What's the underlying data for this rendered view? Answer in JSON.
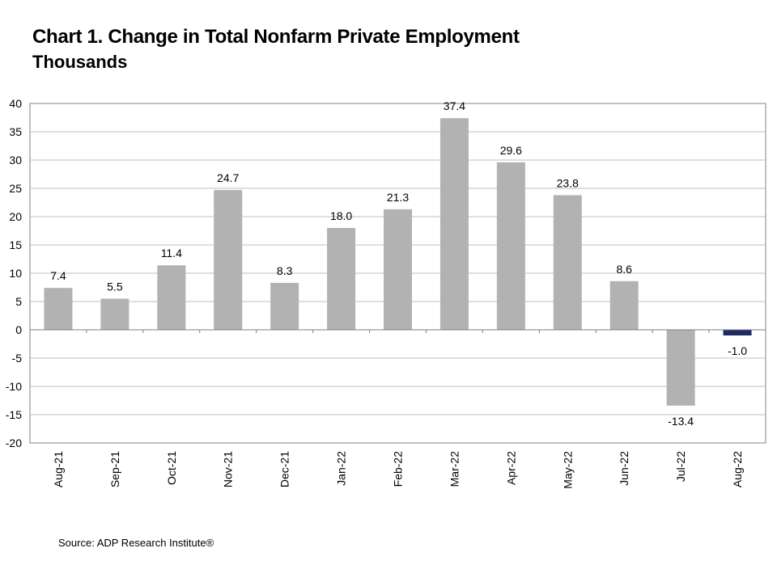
{
  "chart_data": {
    "type": "bar",
    "title": "Chart 1. Change in Total Nonfarm Private Employment",
    "subtitle": "Thousands",
    "categories": [
      "Aug-21",
      "Sep-21",
      "Oct-21",
      "Nov-21",
      "Dec-21",
      "Jan-22",
      "Feb-22",
      "Mar-22",
      "Apr-22",
      "May-22",
      "Jun-22",
      "Jul-22",
      "Aug-22"
    ],
    "values": [
      7.4,
      5.5,
      11.4,
      24.7,
      8.3,
      18.0,
      21.3,
      37.4,
      29.6,
      23.8,
      8.6,
      -13.4,
      -1.0
    ],
    "value_labels": [
      "7.4",
      "5.5",
      "11.4",
      "24.7",
      "8.3",
      "18.0",
      "21.3",
      "37.4",
      "29.6",
      "23.8",
      "8.6",
      "-13.4",
      "-1.0"
    ],
    "ylim": [
      -20,
      40
    ],
    "yticks": [
      -20,
      -15,
      -10,
      -5,
      0,
      5,
      10,
      15,
      20,
      25,
      30,
      35,
      40
    ],
    "grid": true,
    "legend": "none",
    "colors": {
      "bar": "#b2b2b2",
      "highlight": "#1f2a63",
      "grid": "#bfbfbf",
      "axis": "#808080"
    },
    "highlight_index": 12,
    "source": "Source: ADP Research Institute®"
  }
}
